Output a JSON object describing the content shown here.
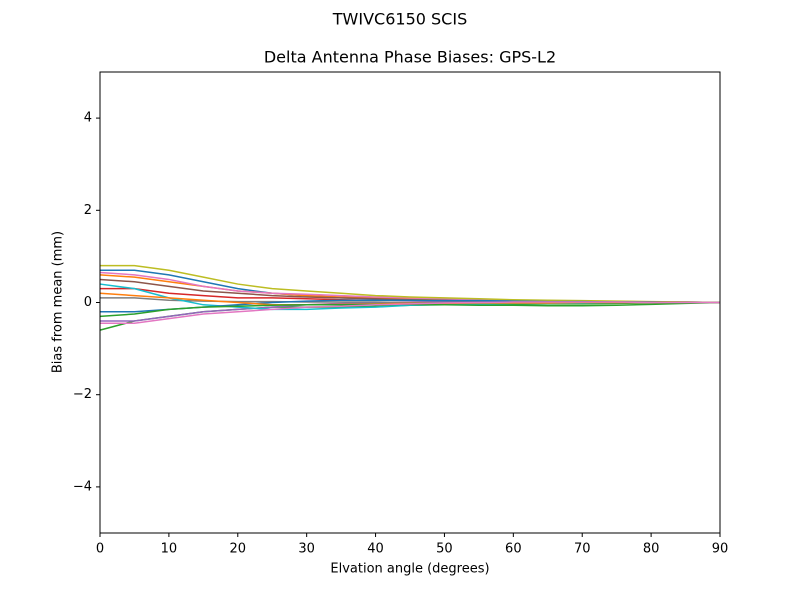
{
  "chart_data": {
    "type": "line",
    "suptitle": "TWIVC6150        SCIS",
    "title": "Delta Antenna Phase Biases: GPS-L2",
    "xlabel": "Elvation angle (degrees)",
    "ylabel": "Bias from mean (mm)",
    "x": [
      0,
      5,
      10,
      15,
      20,
      25,
      30,
      35,
      40,
      45,
      50,
      55,
      60,
      65,
      70,
      75,
      80,
      85,
      90
    ],
    "xlim": [
      0,
      90
    ],
    "xticks": [
      0,
      10,
      20,
      30,
      40,
      50,
      60,
      70,
      80,
      90
    ],
    "ylim": [
      -5,
      5
    ],
    "yticks": [
      {
        "value": -4,
        "label": "−4"
      },
      {
        "value": -2,
        "label": "−2"
      },
      0,
      2,
      4
    ],
    "series": [
      {
        "color": "#1f77b4",
        "values": [
          0.7,
          0.7,
          0.6,
          0.45,
          0.3,
          0.2,
          0.15,
          0.1,
          0.08,
          0.06,
          0.05,
          0.04,
          0.03,
          0.03,
          0.02,
          0.02,
          0.01,
          0.01,
          0
        ]
      },
      {
        "color": "#ff7f0e",
        "values": [
          0.6,
          0.55,
          0.45,
          0.35,
          0.25,
          0.2,
          0.15,
          0.12,
          0.1,
          0.08,
          0.06,
          0.05,
          0.04,
          0.03,
          0.02,
          0.02,
          0.01,
          0,
          0
        ]
      },
      {
        "color": "#2ca02c",
        "values": [
          -0.6,
          -0.4,
          -0.3,
          -0.2,
          -0.15,
          -0.1,
          -0.1,
          -0.1,
          -0.08,
          -0.06,
          -0.05,
          -0.04,
          -0.04,
          -0.03,
          -0.03,
          -0.02,
          -0.01,
          0,
          0
        ]
      },
      {
        "color": "#d62728",
        "values": [
          0.3,
          0.3,
          0.2,
          0.15,
          0.1,
          0.1,
          0.08,
          0.06,
          0.05,
          0.05,
          0.04,
          0.03,
          0.03,
          0.02,
          0.02,
          0.01,
          0.01,
          0,
          0
        ]
      },
      {
        "color": "#9467bd",
        "values": [
          -0.4,
          -0.4,
          -0.3,
          -0.2,
          -0.15,
          -0.1,
          -0.05,
          -0.02,
          0,
          0.01,
          0.02,
          0.02,
          0.02,
          0.01,
          0.01,
          0.01,
          0,
          0,
          0
        ]
      },
      {
        "color": "#8c564b",
        "values": [
          0.5,
          0.45,
          0.35,
          0.25,
          0.2,
          0.15,
          0.12,
          0.1,
          0.08,
          0.06,
          0.05,
          0.04,
          0.03,
          0.02,
          0.02,
          0.01,
          0.01,
          0,
          0
        ]
      },
      {
        "color": "#e377c2",
        "values": [
          0.65,
          0.6,
          0.5,
          0.35,
          0.25,
          0.2,
          0.18,
          0.15,
          0.12,
          0.1,
          0.08,
          0.06,
          0.05,
          0.04,
          0.03,
          0.02,
          0.01,
          0.01,
          0
        ]
      },
      {
        "color": "#7f7f7f",
        "values": [
          0.1,
          0.1,
          0.05,
          0.03,
          0.02,
          0.02,
          0.01,
          0.01,
          0.01,
          0,
          0,
          0,
          0,
          0,
          0,
          0,
          0,
          0,
          0
        ]
      },
      {
        "color": "#bcbd22",
        "values": [
          0.8,
          0.8,
          0.7,
          0.55,
          0.4,
          0.3,
          0.25,
          0.2,
          0.15,
          0.12,
          0.1,
          0.08,
          0.06,
          0.05,
          0.04,
          0.03,
          0.02,
          0.01,
          0
        ]
      },
      {
        "color": "#17becf",
        "values": [
          0.4,
          0.3,
          0.1,
          -0.05,
          -0.1,
          -0.15,
          -0.15,
          -0.12,
          -0.1,
          -0.06,
          -0.04,
          -0.03,
          -0.02,
          -0.02,
          -0.01,
          0,
          0,
          0,
          0
        ]
      },
      {
        "color": "#1f77b4",
        "values": [
          -0.2,
          -0.2,
          -0.15,
          -0.1,
          -0.05,
          0,
          0.03,
          0.05,
          0.05,
          0.05,
          0.04,
          0.04,
          0.03,
          0.02,
          0.02,
          0.01,
          0.01,
          0,
          0
        ]
      },
      {
        "color": "#ff7f0e",
        "values": [
          0.2,
          0.15,
          0.1,
          0.05,
          0,
          -0.05,
          -0.05,
          -0.04,
          -0.03,
          -0.02,
          -0.02,
          -0.01,
          -0.01,
          -0.01,
          0,
          0,
          0,
          0,
          0
        ]
      },
      {
        "color": "#2ca02c",
        "values": [
          -0.3,
          -0.25,
          -0.15,
          -0.1,
          -0.08,
          -0.06,
          -0.05,
          -0.05,
          -0.04,
          -0.04,
          -0.05,
          -0.06,
          -0.06,
          -0.07,
          -0.07,
          -0.06,
          -0.04,
          -0.02,
          0
        ]
      },
      {
        "color": "#e377c2",
        "values": [
          -0.45,
          -0.45,
          -0.35,
          -0.25,
          -0.2,
          -0.15,
          -0.1,
          -0.08,
          -0.05,
          -0.03,
          -0.01,
          0,
          0.01,
          0.01,
          0.01,
          0.01,
          0,
          0,
          0
        ]
      }
    ]
  }
}
